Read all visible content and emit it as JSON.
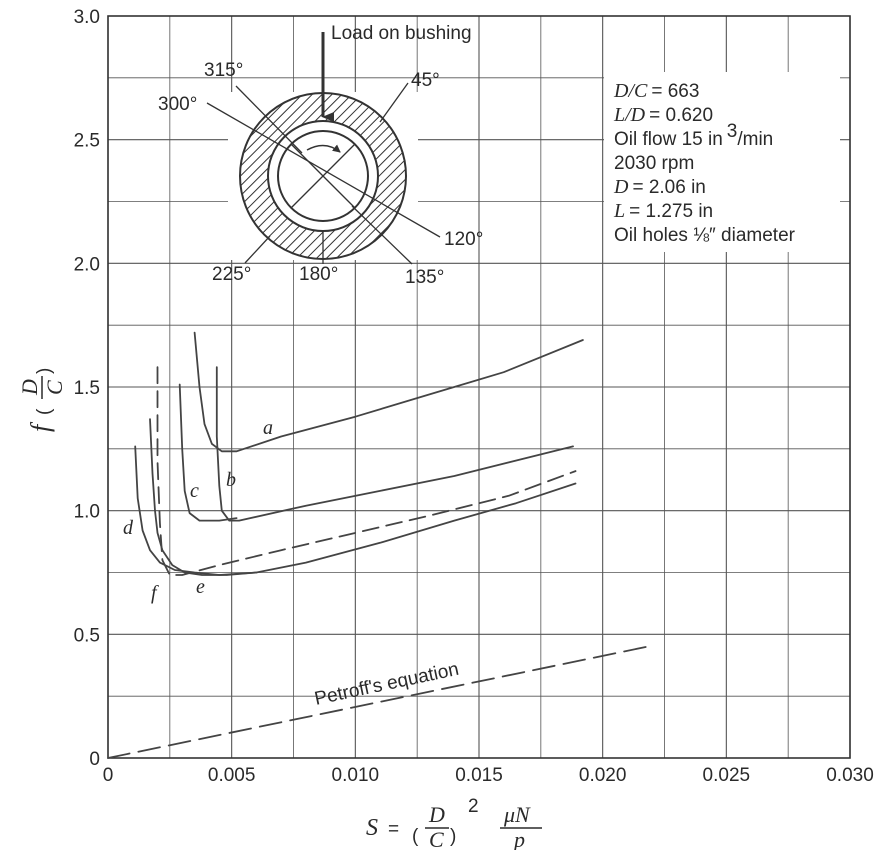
{
  "chart_data": {
    "type": "line",
    "xlabel": {
      "lhs": "S",
      "eq": "=",
      "frac1_num": "D",
      "frac1_den": "C",
      "exponent": "2",
      "frac2_num": "μN",
      "frac2_den": "p"
    },
    "ylabel": {
      "fn": "f",
      "frac_num": "D",
      "frac_den": "C"
    },
    "xlim": [
      0,
      0.03
    ],
    "ylim": [
      0,
      3.0
    ],
    "x_ticks": [
      "0",
      "0.005",
      "0.010",
      "0.015",
      "0.020",
      "0.025",
      "0.030"
    ],
    "y_ticks": [
      "0",
      "0.5",
      "1.0",
      "1.5",
      "2.0",
      "2.5",
      "3.0"
    ],
    "grid": true,
    "series": [
      {
        "name": "a",
        "style": "solid",
        "points": [
          [
            0.0035,
            1.72
          ],
          [
            0.0037,
            1.5
          ],
          [
            0.0039,
            1.35
          ],
          [
            0.0042,
            1.27
          ],
          [
            0.0046,
            1.24
          ],
          [
            0.0052,
            1.24
          ],
          [
            0.007,
            1.3
          ],
          [
            0.01,
            1.38
          ],
          [
            0.013,
            1.47
          ],
          [
            0.016,
            1.56
          ],
          [
            0.0192,
            1.69
          ]
        ]
      },
      {
        "name": "b",
        "style": "solid",
        "points": [
          [
            0.0044,
            1.58
          ],
          [
            0.0044,
            1.3
          ],
          [
            0.0045,
            1.1
          ],
          [
            0.0046,
            1.0
          ],
          [
            0.0049,
            0.96
          ],
          [
            0.0053,
            0.96
          ],
          [
            0.008,
            1.02
          ],
          [
            0.011,
            1.08
          ],
          [
            0.014,
            1.14
          ],
          [
            0.0188,
            1.26
          ]
        ]
      },
      {
        "name": "c",
        "style": "solid",
        "points": [
          [
            0.0029,
            1.51
          ],
          [
            0.003,
            1.25
          ],
          [
            0.0031,
            1.08
          ],
          [
            0.0033,
            0.99
          ],
          [
            0.0037,
            0.96
          ],
          [
            0.0045,
            0.96
          ],
          [
            0.0052,
            0.97
          ]
        ]
      },
      {
        "name": "d",
        "style": "solid",
        "points": [
          [
            0.0011,
            1.26
          ],
          [
            0.0012,
            1.05
          ],
          [
            0.0014,
            0.92
          ],
          [
            0.0017,
            0.84
          ],
          [
            0.0021,
            0.79
          ],
          [
            0.0027,
            0.76
          ],
          [
            0.0035,
            0.75
          ],
          [
            0.0045,
            0.74
          ],
          [
            0.006,
            0.75
          ],
          [
            0.008,
            0.79
          ],
          [
            0.011,
            0.87
          ],
          [
            0.014,
            0.96
          ],
          [
            0.0165,
            1.03
          ],
          [
            0.0189,
            1.11
          ]
        ]
      },
      {
        "name": "e",
        "style": "solid",
        "points": [
          [
            0.0017,
            1.37
          ],
          [
            0.0018,
            1.15
          ],
          [
            0.0019,
            1.0
          ],
          [
            0.002,
            0.91
          ],
          [
            0.0022,
            0.84
          ],
          [
            0.0026,
            0.78
          ],
          [
            0.0031,
            0.75
          ],
          [
            0.0038,
            0.74
          ],
          [
            0.0048,
            0.74
          ],
          [
            0.006,
            0.75
          ]
        ]
      },
      {
        "name": "f",
        "style": "dashed",
        "points": [
          [
            0.002,
            1.58
          ],
          [
            0.002,
            1.2
          ],
          [
            0.0021,
            0.95
          ],
          [
            0.0022,
            0.8
          ],
          [
            0.0025,
            0.74
          ],
          [
            0.003,
            0.74
          ],
          [
            0.0045,
            0.78
          ],
          [
            0.007,
            0.84
          ],
          [
            0.01,
            0.91
          ],
          [
            0.013,
            0.98
          ],
          [
            0.0162,
            1.06
          ],
          [
            0.0189,
            1.16
          ]
        ]
      },
      {
        "name": "Petroff's equation",
        "style": "dashed",
        "points": [
          [
            0.0,
            0.0
          ],
          [
            0.0218,
            0.45
          ]
        ]
      }
    ]
  },
  "annotations": {
    "curve_letters": {
      "a": "a",
      "b": "b",
      "c": "c",
      "d": "d",
      "e": "e",
      "f": "f"
    },
    "petroff": "Petroff's equation",
    "load": "Load on bushing",
    "angles": {
      "a315": "315°",
      "a300": "300°",
      "a45": "45°",
      "a120": "120°",
      "a135": "135°",
      "a180": "180°",
      "a225": "225°"
    },
    "params": {
      "dc_var": "D/C",
      "dc_val": "= 663",
      "ld_var": "L/D",
      "ld_val": "= 0.620",
      "oilflow": "Oil flow 15 in",
      "oilflow_exp": "3",
      "oilflow_unit": "/min",
      "rpm": "2030 rpm",
      "d_var": "D",
      "d_val": "= 2.06 in",
      "l_var": "L",
      "l_val": "= 1.275 in",
      "holes": "Oil holes ⅛″ diameter"
    }
  }
}
